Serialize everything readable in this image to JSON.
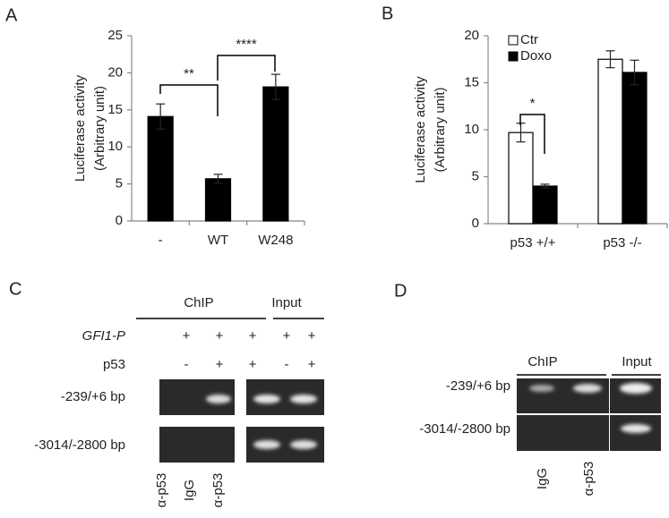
{
  "chart_data": [
    {
      "type": "bar",
      "panel": "A",
      "ylabel_lines": [
        "Luciferase activity",
        "(Arbitrary unit)"
      ],
      "categories": [
        "-",
        "WT",
        "W248"
      ],
      "series": [
        {
          "color": "#000000",
          "values": [
            14.1,
            5.7,
            18.1
          ],
          "errors": [
            1.7,
            0.6,
            1.7
          ]
        }
      ],
      "ylim": [
        0,
        25
      ],
      "yticks": [
        0,
        5,
        10,
        15,
        20,
        25
      ],
      "annotations": [
        "**",
        "****"
      ]
    },
    {
      "type": "bar",
      "panel": "B",
      "ylabel_lines": [
        "Luciferase activity",
        "(Arbitrary unit)"
      ],
      "categories": [
        "p53 +/+",
        "p53 -/-"
      ],
      "series": [
        {
          "name": "Ctr",
          "color": "#ffffff",
          "values": [
            9.7,
            17.5
          ],
          "errors": [
            1.0,
            0.9
          ]
        },
        {
          "name": "Doxo",
          "color": "#000000",
          "values": [
            4.0,
            16.1
          ],
          "errors": [
            0.2,
            1.3
          ]
        }
      ],
      "ylim": [
        0,
        20
      ],
      "yticks": [
        0,
        5,
        10,
        15,
        20
      ],
      "annotations": [
        "*"
      ],
      "legend": "top-left"
    }
  ],
  "panel_c": {
    "label": "C",
    "headers": [
      "ChIP",
      "Input"
    ],
    "rows": [
      {
        "label": "GFI1-P",
        "cells": [
          "+",
          "+",
          "+",
          "+",
          "+"
        ]
      },
      {
        "label": "p53",
        "cells": [
          "-",
          "+",
          "+",
          "-",
          "+"
        ]
      }
    ],
    "gel_rows": [
      "-239/+6 bp",
      "-3014/-2800 bp"
    ],
    "lanes": [
      "α-p53",
      "IgG",
      "α-p53"
    ]
  },
  "panel_d": {
    "label": "D",
    "headers": [
      "ChIP",
      "Input"
    ],
    "gel_rows": [
      "-239/+6 bp",
      "-3014/-2800 bp"
    ],
    "lanes": [
      "IgG",
      "α-p53"
    ]
  }
}
